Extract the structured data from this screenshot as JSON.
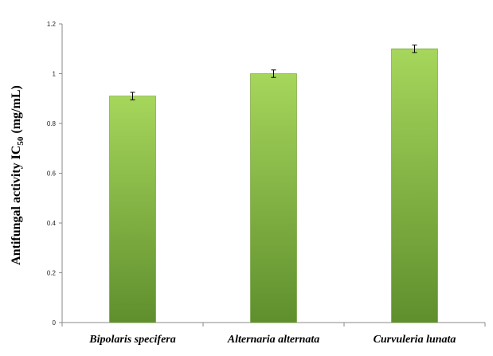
{
  "chart_data": {
    "type": "bar",
    "title": "",
    "xlabel": "",
    "ylabel": {
      "main": "Antifungal activity IC",
      "subscript": "50",
      "unit": " (mg/mL)"
    },
    "categories": [
      "Bipolaris specifera",
      "Alternaria alternata",
      "Curvuleria lunata"
    ],
    "values": [
      0.91,
      1.0,
      1.1
    ],
    "errors": [
      0.015,
      0.015,
      0.015
    ],
    "ylim": [
      0,
      1.2
    ],
    "yticks": [
      {
        "v": 0,
        "label": "0"
      },
      {
        "v": 0.2,
        "label": "0.2"
      },
      {
        "v": 0.4,
        "label": "0.4"
      },
      {
        "v": 0.6,
        "label": "0.6"
      },
      {
        "v": 0.8,
        "label": "0.8"
      },
      {
        "v": 1.0,
        "label": "1"
      },
      {
        "v": 1.2,
        "label": "1.2"
      }
    ],
    "grid": false,
    "legend": "none",
    "colors": {
      "bar_top": "#a6d65b",
      "bar_bottom": "#5f8f2d",
      "bar_edge": "#6e9a34",
      "axis": "#888888",
      "error_bar": "#000000"
    }
  }
}
